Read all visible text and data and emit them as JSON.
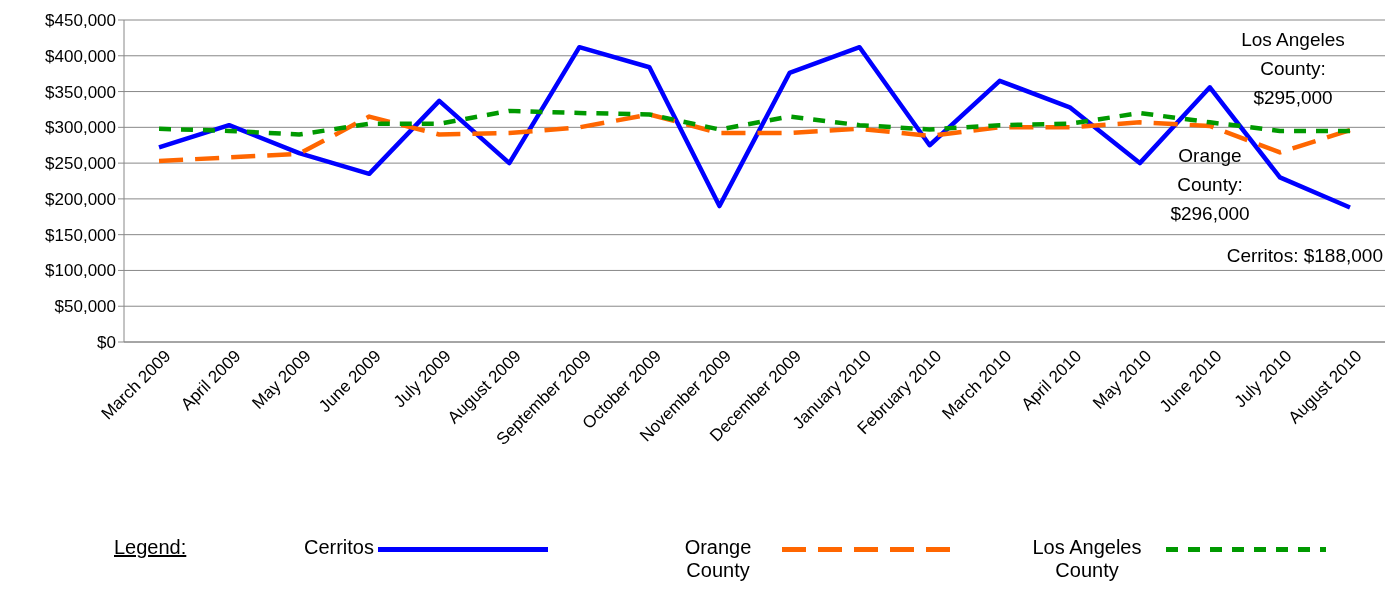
{
  "chart_data": {
    "type": "line",
    "categories": [
      "March 2009",
      "April 2009",
      "May 2009",
      "June 2009",
      "July 2009",
      "August 2009",
      "September 2009",
      "October 2009",
      "November 2009",
      "December 2009",
      "January 2010",
      "February 2010",
      "March 2010",
      "April 2010",
      "May 2010",
      "June 2010",
      "July 2010",
      "August 2010"
    ],
    "series": [
      {
        "name": "Cerritos",
        "color": "#0000ff",
        "line_style": "solid",
        "values": [
          272000,
          303000,
          264000,
          235000,
          337000,
          250000,
          412000,
          384000,
          190000,
          376000,
          412000,
          275000,
          365000,
          328000,
          250000,
          356000,
          230000,
          188000
        ]
      },
      {
        "name": "Orange County",
        "color": "#ff6600",
        "line_style": "dashed",
        "values": [
          253000,
          258000,
          263000,
          315000,
          290000,
          292000,
          300000,
          318000,
          292000,
          292000,
          298000,
          288000,
          300000,
          300000,
          307000,
          302000,
          265000,
          296000
        ]
      },
      {
        "name": "Los Angeles County",
        "color": "#009900",
        "line_style": "dashed",
        "values": [
          298000,
          295000,
          290000,
          305000,
          305000,
          323000,
          320000,
          318000,
          297000,
          315000,
          303000,
          297000,
          303000,
          305000,
          320000,
          307000,
          295000,
          295000
        ]
      }
    ],
    "ylim": [
      0,
      450000
    ],
    "yticks": [
      {
        "value": 0,
        "label": "$0"
      },
      {
        "value": 50000,
        "label": "$50,000"
      },
      {
        "value": 100000,
        "label": "$100,000"
      },
      {
        "value": 150000,
        "label": "$150,000"
      },
      {
        "value": 200000,
        "label": "$200,000"
      },
      {
        "value": 250000,
        "label": "$250,000"
      },
      {
        "value": 300000,
        "label": "$300,000"
      },
      {
        "value": 350000,
        "label": "$350,000"
      },
      {
        "value": 400000,
        "label": "$400,000"
      },
      {
        "value": 450000,
        "label": "$450,000"
      }
    ],
    "grid": "y",
    "legend": "bottom",
    "legend_title": "Legend:",
    "marker": "none",
    "annotations": [
      "Los Angeles County: $295,000",
      "Orange County: $296,000",
      "Cerritos: $188,000"
    ]
  }
}
